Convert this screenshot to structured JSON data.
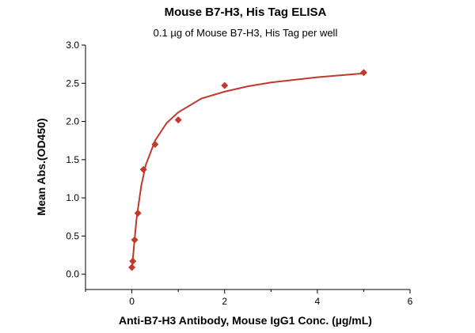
{
  "chart_data": {
    "type": "scatter",
    "title": "Mouse B7-H3, His Tag ELISA",
    "subtitle": "0.1 µg of Mouse B7-H3, His Tag per well",
    "xlabel": "Anti-B7-H3 Antibody, Mouse IgG1 Conc. (µg/mL)",
    "ylabel": "Mean Abs.(OD450)",
    "xlim": [
      -1,
      6
    ],
    "ylim": [
      -0.2,
      3.0
    ],
    "xticks": [
      0,
      2,
      4,
      6
    ],
    "xtick_labels": [
      "0",
      "2",
      "4",
      "6"
    ],
    "yticks": [
      0.0,
      0.5,
      1.0,
      1.5,
      2.0,
      2.5,
      3.0
    ],
    "ytick_labels": [
      "0.0",
      "0.5",
      "1.0",
      "1.5",
      "2.0",
      "2.5",
      "3.0"
    ],
    "grid": false,
    "legend": false,
    "series": [
      {
        "marker": "diamond",
        "x": [
          0.0,
          0.02,
          0.06,
          0.13,
          0.25,
          0.5,
          1.0,
          2.0,
          5.0
        ],
        "y": [
          0.09,
          0.17,
          0.45,
          0.8,
          1.37,
          1.7,
          2.02,
          2.47,
          2.64
        ]
      }
    ],
    "fit_curve": {
      "x": [
        0.0,
        0.05,
        0.1,
        0.2,
        0.3,
        0.5,
        0.75,
        1.0,
        1.5,
        2.0,
        2.5,
        3.0,
        4.0,
        5.0
      ],
      "y": [
        0.05,
        0.4,
        0.72,
        1.15,
        1.43,
        1.75,
        1.98,
        2.12,
        2.3,
        2.39,
        2.46,
        2.51,
        2.58,
        2.63
      ]
    },
    "colors": {
      "series": "#c0392b",
      "axis": "#000000"
    }
  }
}
